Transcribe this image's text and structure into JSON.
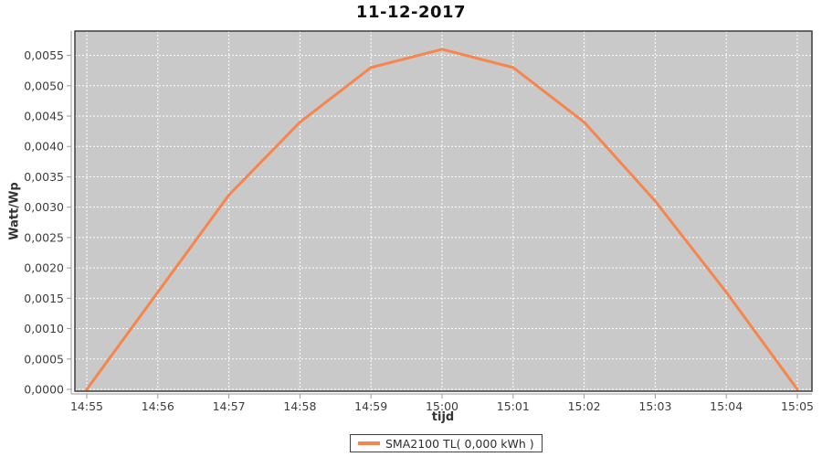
{
  "page": {
    "background": "#ffffff"
  },
  "chart_data": {
    "type": "line",
    "title": "11-12-2017",
    "xlabel": "tijd",
    "ylabel": "Watt/Wp",
    "categories": [
      "14:55",
      "14:56",
      "14:57",
      "14:58",
      "14:59",
      "15:00",
      "15:01",
      "15:02",
      "15:03",
      "15:04",
      "15:05"
    ],
    "series": [
      {
        "name": "SMA2100 TL( 0,000 kWh )",
        "color": "#f6864d",
        "values": [
          0.0,
          0.0016,
          0.0032,
          0.0044,
          0.0053,
          0.0056,
          0.0053,
          0.0044,
          0.0031,
          0.0016,
          0.0
        ]
      }
    ],
    "ylim": [
      0,
      0.0059
    ],
    "yticks": {
      "values": [
        0.0,
        0.0005,
        0.001,
        0.0015,
        0.002,
        0.0025,
        0.003,
        0.0035,
        0.004,
        0.0045,
        0.005,
        0.0055
      ],
      "labels": [
        "0,0000",
        "0,0005",
        "0,0010",
        "0,0015",
        "0,0020",
        "0,0025",
        "0,0030",
        "0,0035",
        "0,0040",
        "0,0045",
        "0,0050",
        "0,0055"
      ]
    },
    "grid": true,
    "legend": {
      "position": "bottom",
      "entries": [
        {
          "label": "SMA2100 TL( 0,000 kWh )",
          "color": "#f6864d"
        }
      ]
    },
    "colors": {
      "plot_bg": "#c9c9c9",
      "grid": "#ffffff",
      "series": "#f6864d",
      "border": "#3c3c3c",
      "axis_line": "#9a9a9a",
      "tick_text": "#3d3d3d",
      "title_text": "#111111"
    }
  }
}
